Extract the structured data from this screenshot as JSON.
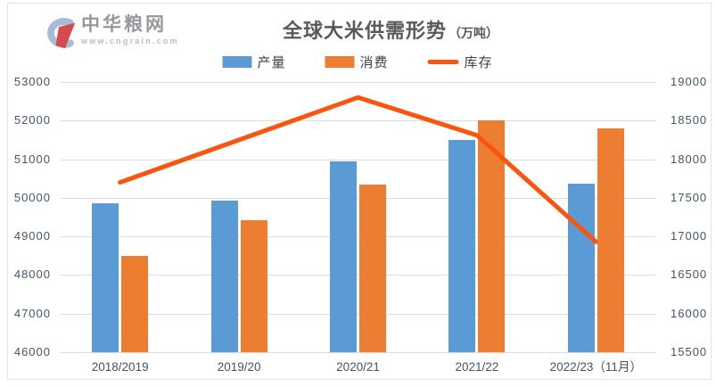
{
  "logo": {
    "name": "中华粮网",
    "url": "www.cngrain.com"
  },
  "title": {
    "text": "全球大米供需形势",
    "unit": "（万吨）"
  },
  "colors": {
    "production_bar": "#5b9bd5",
    "consumption_bar": "#ed7d31",
    "stocks_line": "#fa550f",
    "grid": "#dcdcdc",
    "axis_text": "#44546a",
    "title_text": "#595959"
  },
  "legend": [
    {
      "label": "产量",
      "type": "bar",
      "color": "#5b9bd5"
    },
    {
      "label": "消费",
      "type": "bar",
      "color": "#ed7d31"
    },
    {
      "label": "库存",
      "type": "line",
      "color": "#fa550f"
    }
  ],
  "chart_data": {
    "type": "bar",
    "subtype": "grouped bars + line on secondary axis",
    "title": "全球大米供需形势（万吨）",
    "categories": [
      "2018/2019",
      "2019/20",
      "2020/21",
      "2021/22",
      "2022/23（11月）"
    ],
    "series": [
      {
        "name": "产量",
        "type": "bar",
        "axis": "left",
        "color": "#5b9bd5",
        "values": [
          49850,
          49920,
          50940,
          51510,
          50370
        ]
      },
      {
        "name": "消费",
        "type": "bar",
        "axis": "left",
        "color": "#ed7d31",
        "values": [
          48500,
          49420,
          50350,
          52000,
          51790
        ]
      },
      {
        "name": "库存",
        "type": "line",
        "axis": "right",
        "color": "#fa550f",
        "values": [
          17700,
          18250,
          18800,
          18310,
          16930
        ]
      }
    ],
    "left_axis": {
      "min": 46000,
      "max": 53000,
      "step": 1000,
      "ticks": [
        53000,
        52000,
        51000,
        50000,
        49000,
        48000,
        47000,
        46000
      ]
    },
    "right_axis": {
      "min": 15500,
      "max": 19000,
      "step": 500,
      "ticks": [
        19000,
        18500,
        18000,
        17500,
        17000,
        16500,
        16000,
        15500
      ]
    },
    "grid": true,
    "legend_position": "top",
    "xlabel": "",
    "ylabel": ""
  }
}
